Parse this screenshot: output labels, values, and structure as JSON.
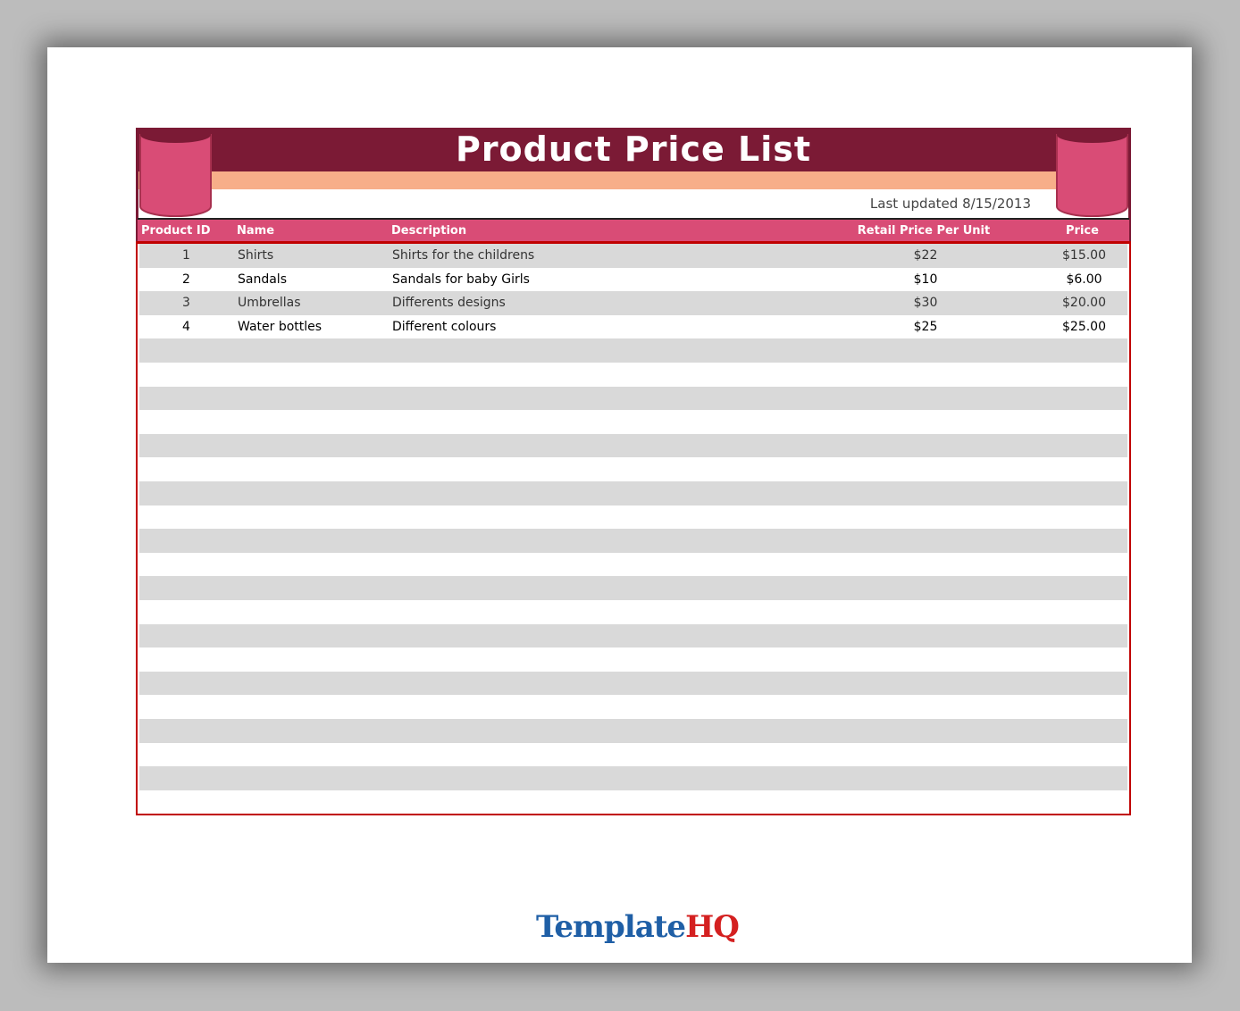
{
  "title": "Product Price List",
  "last_updated": "Last updated 8/15/2013",
  "columns": [
    "Product ID",
    "Name",
    "Description",
    "Retail Price Per Unit",
    "Price"
  ],
  "rows": [
    {
      "id": "1",
      "name": "Shirts",
      "description": "Shirts for the childrens",
      "retail": "$22",
      "price": "$15.00"
    },
    {
      "id": "2",
      "name": "Sandals",
      "description": "Sandals for baby Girls",
      "retail": "$10",
      "price": "$6.00"
    },
    {
      "id": "3",
      "name": "Umbrellas",
      "description": "Differents designs",
      "retail": "$30",
      "price": "$20.00"
    },
    {
      "id": "4",
      "name": "Water bottles",
      "description": "Different colours",
      "retail": "$25",
      "price": "$25.00"
    }
  ],
  "logo": {
    "part1": "Template",
    "part2": "HQ",
    "color1": "#1f5fa6",
    "color2": "#d42020"
  },
  "colors": {
    "title_band": "#7b1a35",
    "accent_band": "#f7ae89",
    "header": "#d94c76",
    "border": "#c00000",
    "stripe": "#d9d9d9"
  }
}
